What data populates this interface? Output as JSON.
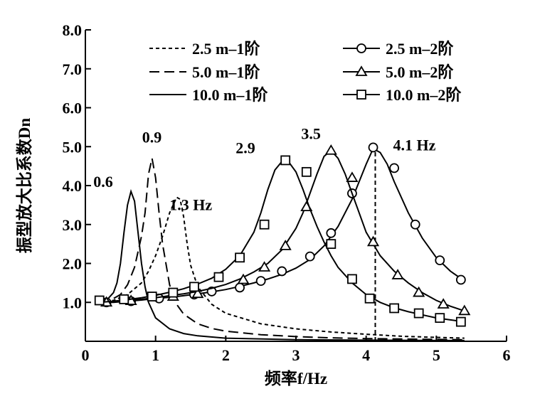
{
  "chart_data": {
    "type": "line",
    "xlabel": "频率f/Hz",
    "ylabel": "振型放大比系数Dn",
    "xlim": [
      0,
      6
    ],
    "ylim": [
      0,
      8
    ],
    "xticks": [
      0,
      1,
      2,
      3,
      4,
      5,
      6
    ],
    "yticks": [
      "",
      "1.0",
      "2.0",
      "3.0",
      "4.0",
      "5.0",
      "6.0",
      "7.0",
      "8.0"
    ],
    "grid": false,
    "legend_position": "top",
    "series": [
      {
        "name": "2.5 m–1阶",
        "style": "short-dash",
        "marker": "none",
        "x": [
          0.2,
          0.4,
          0.6,
          0.8,
          0.9,
          1.0,
          1.1,
          1.2,
          1.3,
          1.35,
          1.4,
          1.45,
          1.5,
          1.6,
          1.8,
          2.0,
          2.5,
          3.0,
          3.5,
          4.0,
          4.5,
          5.0,
          5.4
        ],
        "y": [
          1.0,
          1.05,
          1.2,
          1.5,
          1.8,
          2.2,
          2.7,
          3.3,
          3.7,
          3.65,
          3.2,
          2.5,
          1.95,
          1.4,
          0.95,
          0.72,
          0.45,
          0.32,
          0.24,
          0.18,
          0.13,
          0.1,
          0.08
        ]
      },
      {
        "name": "5.0 m–1阶",
        "style": "long-dash",
        "marker": "none",
        "x": [
          0.2,
          0.4,
          0.5,
          0.6,
          0.7,
          0.8,
          0.85,
          0.9,
          0.95,
          1.0,
          1.05,
          1.1,
          1.2,
          1.3,
          1.4,
          1.6,
          1.8,
          2.0,
          2.5,
          3.0,
          3.5,
          4.0,
          5.0,
          5.4
        ],
        "y": [
          1.0,
          1.1,
          1.2,
          1.45,
          1.9,
          2.7,
          3.3,
          4.3,
          4.7,
          4.2,
          3.3,
          2.5,
          1.45,
          0.95,
          0.7,
          0.45,
          0.33,
          0.26,
          0.17,
          0.12,
          0.09,
          0.07,
          0.05,
          0.04
        ]
      },
      {
        "name": "10.0 m–1阶",
        "style": "solid",
        "marker": "none",
        "x": [
          0.2,
          0.3,
          0.4,
          0.45,
          0.5,
          0.55,
          0.6,
          0.65,
          0.7,
          0.75,
          0.8,
          0.85,
          0.9,
          1.0,
          1.2,
          1.4,
          1.6,
          2.0,
          3.0,
          4.0,
          5.0,
          5.4
        ],
        "y": [
          1.0,
          1.05,
          1.25,
          1.5,
          2.0,
          2.8,
          3.5,
          3.85,
          3.6,
          2.8,
          2.0,
          1.4,
          1.0,
          0.6,
          0.32,
          0.2,
          0.14,
          0.08,
          0.04,
          0.03,
          0.02,
          0.02
        ]
      },
      {
        "name": "2.5 m–2阶",
        "style": "solid",
        "marker": "circle",
        "x": [
          0.2,
          0.4,
          0.6,
          0.8,
          1.0,
          1.2,
          1.4,
          1.6,
          1.8,
          2.0,
          2.2,
          2.4,
          2.6,
          2.8,
          3.0,
          3.2,
          3.4,
          3.6,
          3.8,
          3.9,
          4.0,
          4.1,
          4.2,
          4.3,
          4.4,
          4.6,
          4.8,
          5.0,
          5.2,
          5.4
        ],
        "y": [
          1.0,
          1.0,
          1.03,
          1.06,
          1.1,
          1.13,
          1.17,
          1.22,
          1.27,
          1.33,
          1.41,
          1.5,
          1.6,
          1.72,
          1.88,
          2.1,
          2.45,
          2.95,
          3.65,
          4.1,
          4.55,
          4.95,
          4.85,
          4.55,
          4.1,
          3.3,
          2.65,
          2.15,
          1.8,
          1.55
        ],
        "markers_x": [
          0.3,
          0.65,
          1.05,
          1.55,
          1.8,
          2.2,
          2.5,
          2.8,
          3.2,
          3.5,
          3.8,
          4.1,
          4.4,
          4.7,
          5.05,
          5.35
        ],
        "markers_y": [
          1.0,
          1.03,
          1.1,
          1.2,
          1.28,
          1.38,
          1.55,
          1.8,
          2.18,
          2.78,
          3.8,
          4.98,
          4.45,
          3.0,
          2.08,
          1.58
        ]
      },
      {
        "name": "5.0 m–2阶",
        "style": "solid",
        "marker": "triangle",
        "x": [
          0.2,
          0.4,
          0.6,
          0.8,
          1.0,
          1.2,
          1.4,
          1.6,
          1.8,
          2.0,
          2.2,
          2.4,
          2.6,
          2.8,
          3.0,
          3.1,
          3.2,
          3.3,
          3.4,
          3.5,
          3.6,
          3.7,
          3.8,
          3.9,
          4.0,
          4.2,
          4.4,
          4.6,
          4.8,
          5.0,
          5.2,
          5.4
        ],
        "y": [
          1.0,
          1.02,
          1.05,
          1.08,
          1.12,
          1.17,
          1.22,
          1.28,
          1.36,
          1.46,
          1.6,
          1.78,
          2.0,
          2.35,
          2.9,
          3.3,
          3.8,
          4.3,
          4.75,
          4.9,
          4.7,
          4.3,
          3.8,
          3.3,
          2.8,
          2.2,
          1.8,
          1.5,
          1.25,
          1.05,
          0.9,
          0.78
        ],
        "markers_x": [
          0.3,
          0.65,
          1.25,
          1.6,
          2.25,
          2.55,
          2.85,
          3.15,
          3.5,
          3.8,
          4.1,
          4.45,
          4.75,
          5.1,
          5.4
        ],
        "markers_y": [
          1.0,
          1.04,
          1.15,
          1.22,
          1.58,
          1.9,
          2.45,
          3.45,
          4.9,
          4.2,
          2.55,
          1.7,
          1.25,
          0.95,
          0.78
        ]
      },
      {
        "name": "10.0 m–2阶",
        "style": "solid",
        "marker": "square",
        "x": [
          0.2,
          0.4,
          0.6,
          0.8,
          1.0,
          1.2,
          1.4,
          1.6,
          1.8,
          2.0,
          2.2,
          2.4,
          2.5,
          2.6,
          2.7,
          2.8,
          2.9,
          3.0,
          3.1,
          3.2,
          3.3,
          3.4,
          3.5,
          3.6,
          3.8,
          4.0,
          4.2,
          4.4,
          4.6,
          4.8,
          5.0,
          5.2,
          5.4
        ],
        "y": [
          1.0,
          1.03,
          1.07,
          1.12,
          1.18,
          1.26,
          1.35,
          1.47,
          1.62,
          1.85,
          2.2,
          2.8,
          3.3,
          3.9,
          4.4,
          4.62,
          4.6,
          4.35,
          3.9,
          3.4,
          2.95,
          2.55,
          2.2,
          1.9,
          1.5,
          1.2,
          1.0,
          0.86,
          0.76,
          0.68,
          0.6,
          0.55,
          0.5
        ],
        "markers_x": [
          0.2,
          0.55,
          0.95,
          1.25,
          1.55,
          1.9,
          2.2,
          2.55,
          2.85,
          3.15,
          3.5,
          3.8,
          4.05,
          4.4,
          4.75,
          5.05,
          5.35
        ],
        "markers_y": [
          1.05,
          1.08,
          1.15,
          1.25,
          1.4,
          1.65,
          2.15,
          3.0,
          4.65,
          4.35,
          2.5,
          1.6,
          1.1,
          0.85,
          0.72,
          0.6,
          0.5
        ]
      }
    ],
    "annotations": [
      {
        "text": "0.6",
        "x": 0.6,
        "y": 3.85
      },
      {
        "text": "0.9",
        "x": 0.95,
        "y": 4.7
      },
      {
        "text": "1.3 Hz",
        "x": 1.3,
        "y": 3.7
      },
      {
        "text": "2.9",
        "x": 2.85,
        "y": 4.65
      },
      {
        "text": "3.5",
        "x": 3.5,
        "y": 4.9
      },
      {
        "text": "4.1 Hz",
        "x": 4.1,
        "y": 4.98
      }
    ],
    "reference_line": {
      "x": 4.13,
      "y_from": 0,
      "y_to": 4.98,
      "style": "dashed"
    }
  }
}
